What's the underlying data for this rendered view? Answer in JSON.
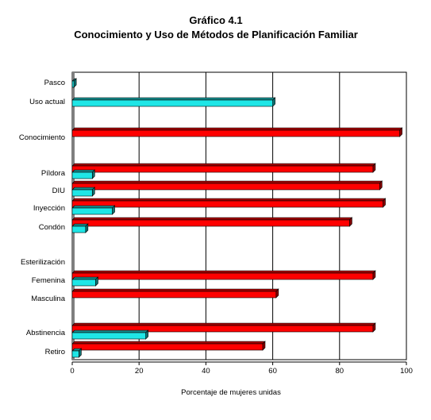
{
  "chart_data": {
    "type": "bar",
    "orientation": "horizontal",
    "title": "Gráfico 4.1",
    "subtitle": "Conocimiento y Uso de Métodos de Planificación Familiar",
    "xlabel": "Porcentaje de mujeres unidas",
    "ylabel": "",
    "xlim": [
      0,
      100
    ],
    "xticks": [
      "0",
      "20",
      "40",
      "60",
      "80",
      "100"
    ],
    "grid": true,
    "legend": "none",
    "colors": {
      "red_series": "#ff0000",
      "cyan_series": "#1fe6e6",
      "frame": "#000000"
    },
    "categories": [
      "Pasco",
      "Uso actual",
      "Conocimiento",
      "Píldora",
      "DIU",
      "Inyección",
      "Condón",
      "Esterilización",
      "Femenina",
      "Masculina",
      "Abstinencia",
      "Retiro"
    ],
    "series": [
      {
        "color": "red",
        "values": [
          null,
          null,
          98,
          90,
          92,
          93,
          83,
          null,
          90,
          61,
          90,
          57
        ]
      },
      {
        "color": "cyan",
        "values": [
          0.5,
          60,
          null,
          6,
          6,
          12,
          4,
          null,
          7,
          null,
          22,
          2
        ]
      }
    ]
  }
}
